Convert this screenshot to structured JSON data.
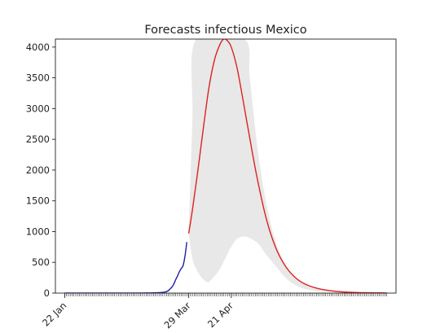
{
  "chart_data": {
    "type": "line",
    "title": "Forecasts infectious Mexico",
    "xlabel": "",
    "ylabel": "",
    "x_range": [
      "2020-01-17",
      "2020-07-19"
    ],
    "ylim": [
      0,
      4130
    ],
    "yticks": [
      0,
      500,
      1000,
      1500,
      2000,
      2500,
      3000,
      3500,
      4000
    ],
    "xtick_labels": [
      {
        "date": "2020-01-22",
        "label": "22 Jan"
      },
      {
        "date": "2020-03-29",
        "label": "29 Mar"
      },
      {
        "date": "2020-04-21",
        "label": "21 Apr"
      }
    ],
    "minor_ticks": {
      "start": "2020-01-22",
      "end": "2020-07-14",
      "step_days": 1
    },
    "grid": false,
    "legend": "none",
    "series": [
      {
        "role": "observed",
        "color": "#1f1fa8",
        "points": [
          [
            "2020-01-22",
            0
          ],
          [
            "2020-02-10",
            0
          ],
          [
            "2020-02-28",
            0
          ],
          [
            "2020-03-06",
            2
          ],
          [
            "2020-03-13",
            8
          ],
          [
            "2020-03-16",
            15
          ],
          [
            "2020-03-18",
            40
          ],
          [
            "2020-03-19",
            70
          ],
          [
            "2020-03-20",
            100
          ],
          [
            "2020-03-21",
            150
          ],
          [
            "2020-03-22",
            220
          ],
          [
            "2020-03-23",
            280
          ],
          [
            "2020-03-24",
            350
          ],
          [
            "2020-03-25",
            400
          ],
          [
            "2020-03-26",
            450
          ],
          [
            "2020-03-27",
            600
          ],
          [
            "2020-03-28",
            830
          ]
        ]
      },
      {
        "role": "forecast",
        "color": "#dd2222",
        "points": [
          [
            "2020-03-29",
            970
          ],
          [
            "2020-03-31",
            1350
          ],
          [
            "2020-04-03",
            2000
          ],
          [
            "2020-04-06",
            2700
          ],
          [
            "2020-04-09",
            3350
          ],
          [
            "2020-04-12",
            3800
          ],
          [
            "2020-04-15",
            4050
          ],
          [
            "2020-04-17",
            4130
          ],
          [
            "2020-04-19",
            4100
          ],
          [
            "2020-04-21",
            4000
          ],
          [
            "2020-04-24",
            3680
          ],
          [
            "2020-04-27",
            3200
          ],
          [
            "2020-05-01",
            2520
          ],
          [
            "2020-05-05",
            1870
          ],
          [
            "2020-05-10",
            1200
          ],
          [
            "2020-05-15",
            740
          ],
          [
            "2020-05-20",
            450
          ],
          [
            "2020-05-25",
            270
          ],
          [
            "2020-05-30",
            160
          ],
          [
            "2020-06-05",
            90
          ],
          [
            "2020-06-12",
            45
          ],
          [
            "2020-06-20",
            20
          ],
          [
            "2020-06-30",
            8
          ],
          [
            "2020-07-14",
            2
          ]
        ]
      }
    ],
    "band": {
      "color": "#e8e8e8",
      "upper": [
        [
          "2020-03-29",
          970
        ],
        [
          "2020-03-31",
          2800
        ],
        [
          "2020-04-02",
          4130
        ],
        [
          "2020-04-28",
          4130
        ],
        [
          "2020-05-01",
          3500
        ],
        [
          "2020-05-05",
          2400
        ],
        [
          "2020-05-10",
          1450
        ],
        [
          "2020-05-15",
          840
        ],
        [
          "2020-05-20",
          480
        ],
        [
          "2020-05-25",
          270
        ],
        [
          "2020-05-30",
          150
        ],
        [
          "2020-06-05",
          80
        ],
        [
          "2020-06-12",
          40
        ],
        [
          "2020-06-20",
          18
        ],
        [
          "2020-06-30",
          8
        ],
        [
          "2020-07-14",
          2
        ]
      ],
      "lower": [
        [
          "2020-07-14",
          0
        ],
        [
          "2020-06-30",
          2
        ],
        [
          "2020-06-20",
          8
        ],
        [
          "2020-06-12",
          20
        ],
        [
          "2020-06-05",
          40
        ],
        [
          "2020-05-30",
          75
        ],
        [
          "2020-05-25",
          140
        ],
        [
          "2020-05-20",
          260
        ],
        [
          "2020-05-15",
          440
        ],
        [
          "2020-05-10",
          620
        ],
        [
          "2020-05-06",
          790
        ],
        [
          "2020-05-02",
          880
        ],
        [
          "2020-04-28",
          920
        ],
        [
          "2020-04-24",
          880
        ],
        [
          "2020-04-20",
          700
        ],
        [
          "2020-04-15",
          400
        ],
        [
          "2020-04-10",
          210
        ],
        [
          "2020-04-08",
          180
        ],
        [
          "2020-04-05",
          250
        ],
        [
          "2020-04-02",
          400
        ],
        [
          "2020-03-31",
          560
        ],
        [
          "2020-03-29",
          970
        ]
      ]
    }
  }
}
